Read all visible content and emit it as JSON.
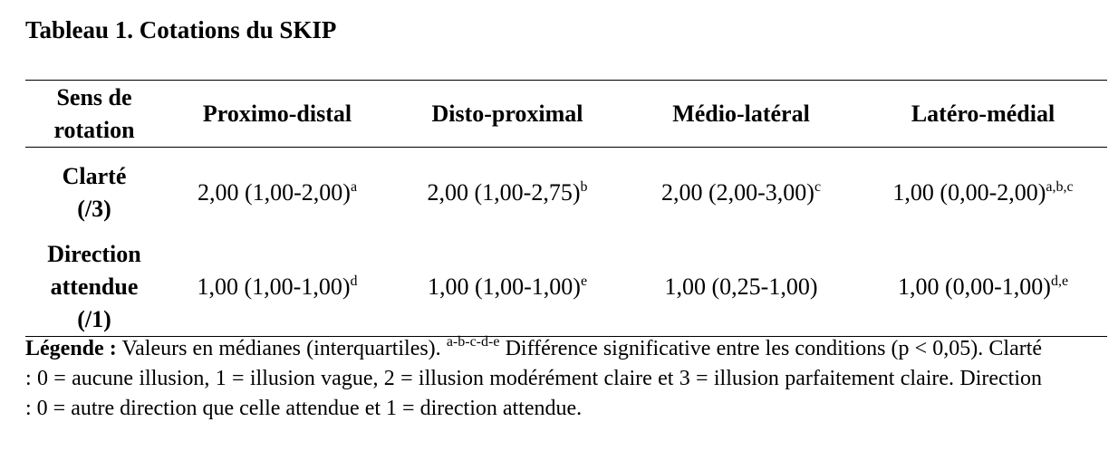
{
  "title": "Tableau 1. Cotations du SKIP",
  "table": {
    "header": [
      "Sens de rotation",
      "Proximo-distal",
      "Disto-proximal",
      "Médio-latéral",
      "Latéro-médial"
    ],
    "rows": [
      {
        "label": [
          "Clarté",
          "(/3)"
        ],
        "cells": [
          {
            "text": "2,00 (1,00-2,00)",
            "sup": "a"
          },
          {
            "text": "2,00 (1,00-2,75)",
            "sup": "b"
          },
          {
            "text": "2,00 (2,00-3,00)",
            "sup": "c"
          },
          {
            "text": "1,00 (0,00-2,00)",
            "sup": "a,b,c"
          }
        ]
      },
      {
        "label": [
          "Direction",
          "attendue",
          "(/1)"
        ],
        "cells": [
          {
            "text": "1,00 (1,00-1,00)",
            "sup": "d"
          },
          {
            "text": "1,00 (1,00-1,00)",
            "sup": "e"
          },
          {
            "text": "1,00 (0,25-1,00)"
          },
          {
            "text": "1,00 (0,00-1,00)",
            "sup": "d,e"
          }
        ]
      }
    ]
  },
  "legend": {
    "label": "Légende :",
    "intro": "Valeurs en médianes (interquartiles).",
    "sup": "a-b-c-d-e",
    "text": "Différence significative entre les conditions (p < 0,05). Clarté : 0 = aucune illusion, 1 = illusion vague, 2 = illusion modérément claire et 3 = illusion parfaitement claire. Direction : 0 = autre direction que celle attendue et 1 = direction attendue."
  }
}
